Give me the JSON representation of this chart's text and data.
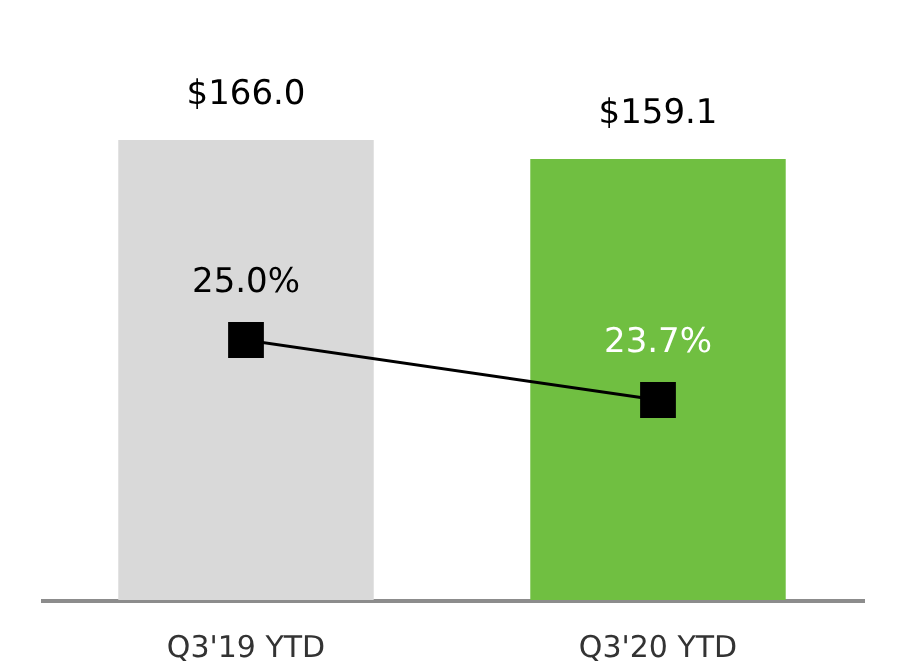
{
  "chart_data": {
    "type": "bar",
    "categories": [
      "Q3'19 YTD",
      "Q3'20 YTD"
    ],
    "marker": "square",
    "line_style": "solid",
    "series": [
      {
        "colors": [
          "#d9d9d9",
          "#70bf41"
        ],
        "values": [
          166.0,
          159.1
        ],
        "value_labels": [
          "$166.0",
          "$159.1"
        ]
      },
      {
        "type": "line",
        "axis": "y2",
        "color": "#000000",
        "values": [
          25.0,
          23.7
        ],
        "value_labels": [
          "25.0%",
          "23.7%"
        ]
      }
    ]
  }
}
